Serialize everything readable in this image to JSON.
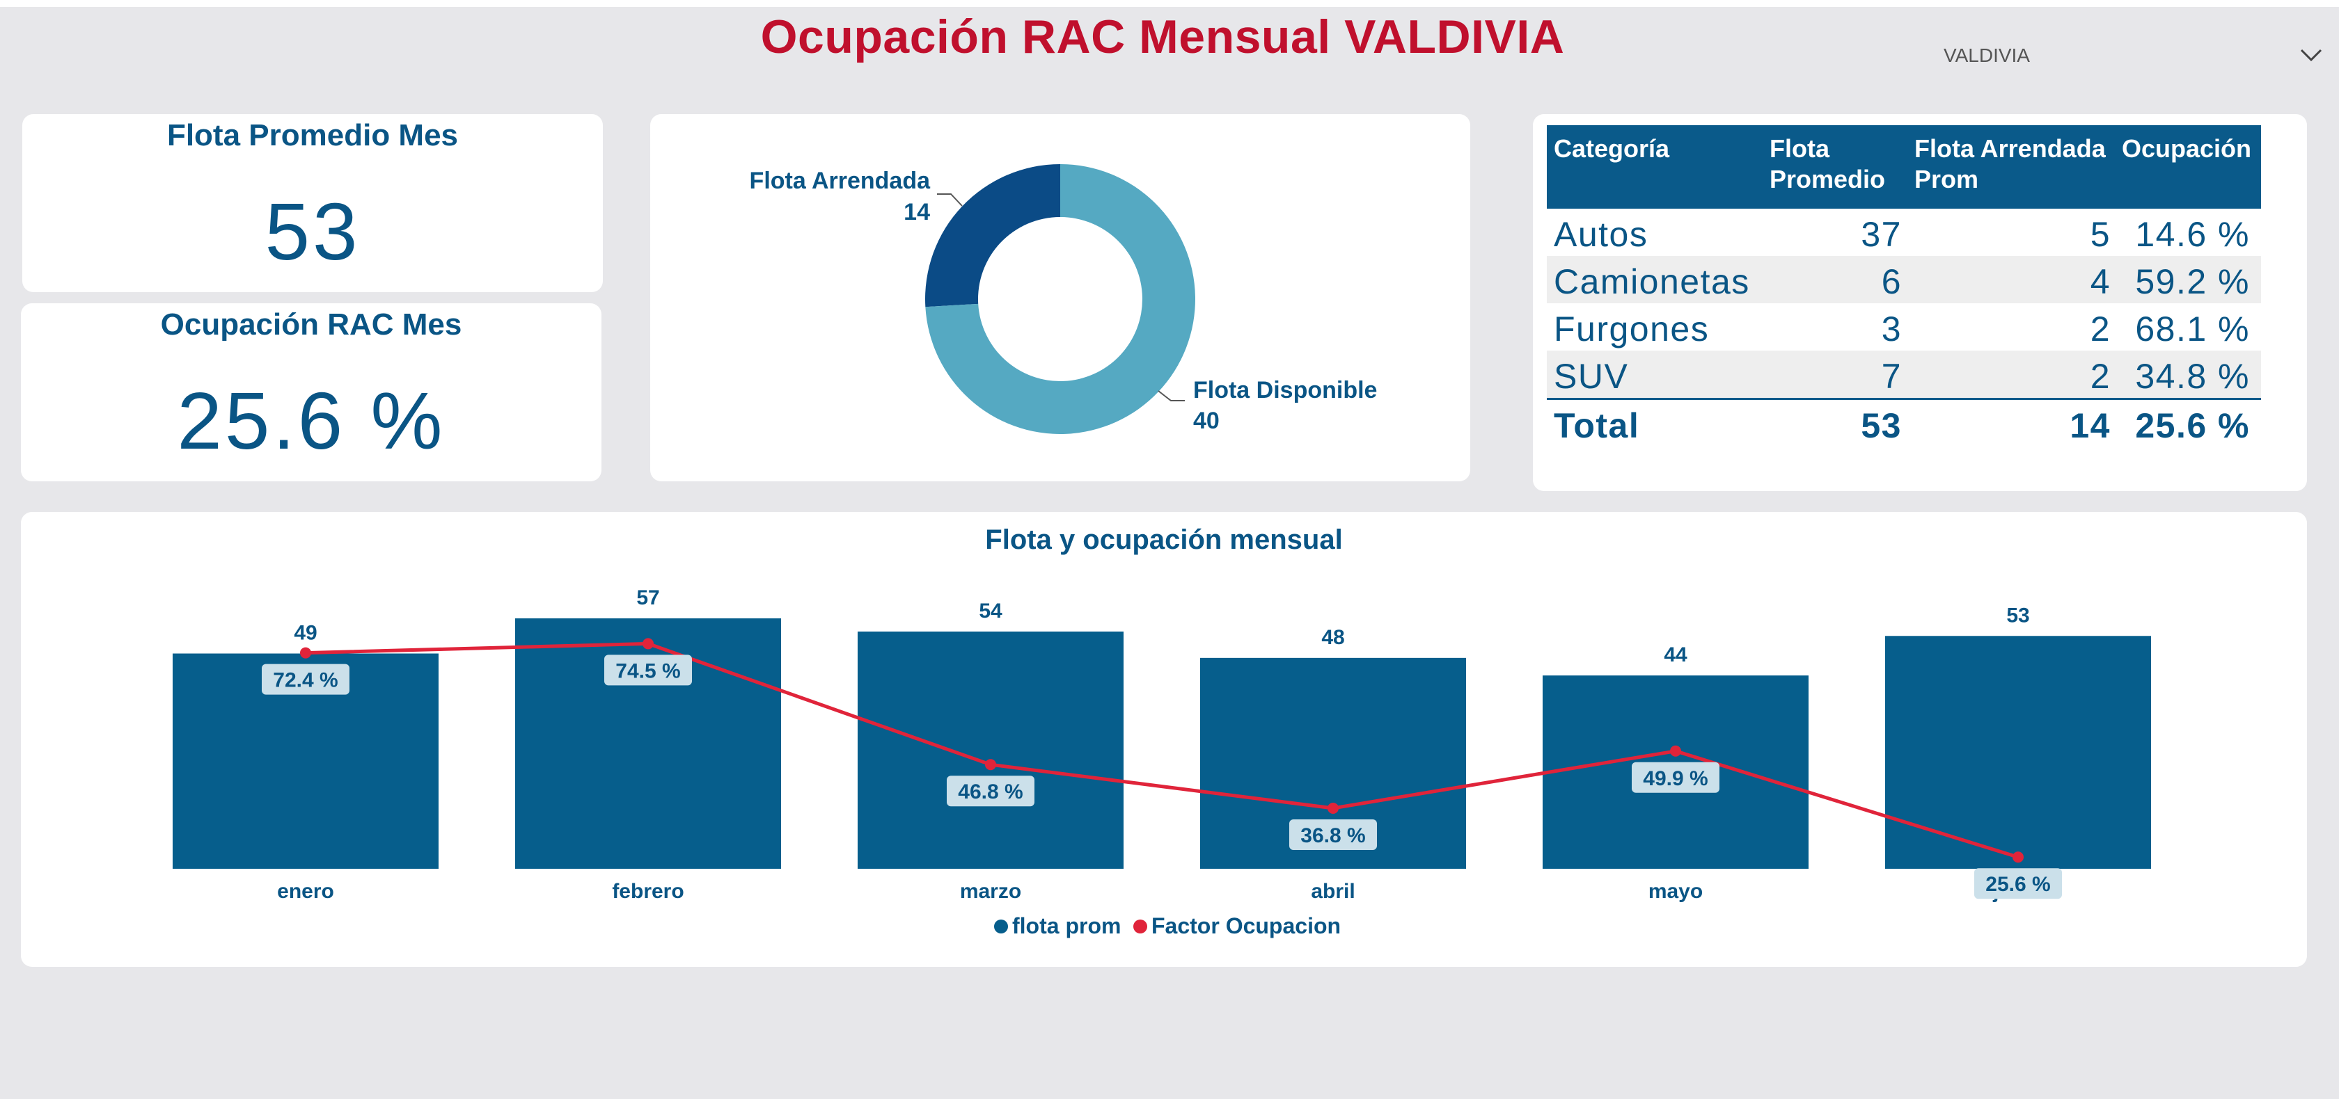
{
  "report_title": "Ocupación RAC Mensual VALDIVIA",
  "slicer": {
    "value": "VALDIVIA",
    "icon": "chevron-down-icon"
  },
  "kpi_flota": {
    "title": "Flota Promedio Mes",
    "value": "53"
  },
  "kpi_ocupacion": {
    "title": "Ocupación RAC Mes",
    "value": "25.6 %"
  },
  "donut": {
    "slices": [
      {
        "label": "Flota Arrendada",
        "value": 14,
        "color": "#0b4b86"
      },
      {
        "label": "Flota Disponible",
        "value": 40,
        "color": "#55a9c2"
      }
    ]
  },
  "table": {
    "headers": [
      "Categoría",
      "Flota Promedio",
      "Flota Arrendada Prom",
      "Ocupación"
    ],
    "rows": [
      {
        "categoria": "Autos",
        "flota": "37",
        "arrendada": "5",
        "ocupacion": "14.6 %"
      },
      {
        "categoria": "Camionetas",
        "flota": "6",
        "arrendada": "4",
        "ocupacion": "59.2 %"
      },
      {
        "categoria": "Furgones",
        "flota": "3",
        "arrendada": "2",
        "ocupacion": "68.1 %"
      },
      {
        "categoria": "SUV",
        "flota": "7",
        "arrendada": "2",
        "ocupacion": "34.8 %"
      }
    ],
    "total": {
      "categoria": "Total",
      "flota": "53",
      "arrendada": "14",
      "ocupacion": "25.6 %"
    }
  },
  "chart_data": {
    "type": "bar",
    "title": "Flota y ocupación mensual",
    "categories": [
      "enero",
      "febrero",
      "marzo",
      "abril",
      "mayo",
      "junio"
    ],
    "series": [
      {
        "name": "flota prom",
        "type": "bar",
        "values": [
          49,
          57,
          54,
          48,
          44,
          53
        ],
        "color": "#065e8c"
      },
      {
        "name": "Factor Ocupacion",
        "type": "line",
        "values": [
          72.4,
          74.5,
          46.8,
          36.8,
          49.9,
          25.6
        ],
        "color": "#e0243a"
      }
    ],
    "line_labels": [
      "72.4 %",
      "74.5 %",
      "46.8 %",
      "36.8 %",
      "49.9 %",
      "25.6 %"
    ],
    "legend": "bottom-center",
    "grid": false
  }
}
